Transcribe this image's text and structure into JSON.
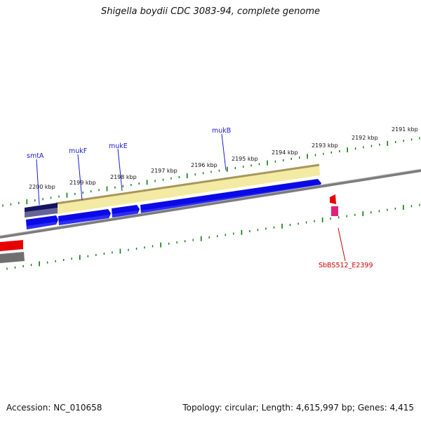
{
  "title": "Shigella boydii CDC 3083-94, complete genome",
  "footer": {
    "accession": "Accession: NC_010658",
    "summary": "Topology: circular; Length: 4,615,997 bp; Genes: 4,415"
  },
  "ticks_kbp": [
    "2191 kbp",
    "2192 kbp",
    "2193 kbp",
    "2194 kbp",
    "2195 kbp",
    "2196 kbp",
    "2197 kbp",
    "2198 kbp",
    "2199 kbp",
    "2200 kbp"
  ],
  "genes": [
    "smtA",
    "mukF",
    "mukE",
    "mukB"
  ],
  "features": {
    "red_label": "SbBS512_E2399"
  },
  "colors": {
    "gene_blue": "#0a0ae6",
    "gene_label": "#1a1acc",
    "yellow_band": "#f3eaa3",
    "navy_band": "#141464",
    "backbone_grey": "#8a8a8a",
    "tick_green": "#0a7a0a",
    "red_feature": "#e60000",
    "pink_feature": "#e0207a"
  }
}
